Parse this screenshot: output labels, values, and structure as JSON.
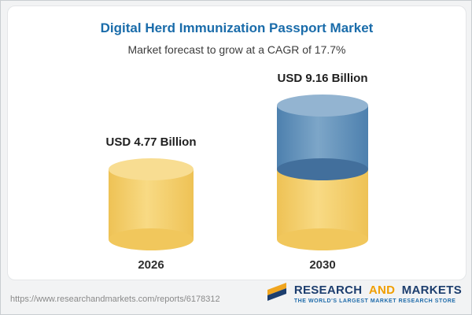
{
  "header": {
    "title": "Digital Herd Immunization Passport Market",
    "subtitle": "Market forecast to grow at a CAGR of 17.7%"
  },
  "chart_data": {
    "type": "bar",
    "variant": "3d-cylinder",
    "categories": [
      "2026",
      "2030"
    ],
    "values": [
      4.77,
      9.16
    ],
    "value_labels": [
      "USD 4.77 Billion",
      "USD 9.16 Billion"
    ],
    "unit": "USD Billion",
    "cagr_percent": 17.7,
    "legend_position": "none",
    "grid": false,
    "colors": {
      "base_segment": "#F3CA5F",
      "growth_segment": "#5D8DB8"
    }
  },
  "footer": {
    "url": "https://www.researchandmarkets.com/reports/6178312",
    "logo": {
      "word1": "RESEARCH",
      "word2": "AND",
      "word3": "MARKETS",
      "tagline": "THE WORLD'S LARGEST MARKET RESEARCH STORE"
    }
  }
}
